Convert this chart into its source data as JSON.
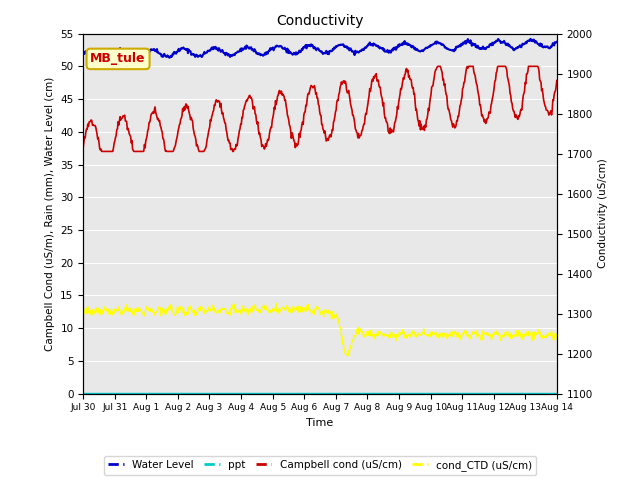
{
  "title": "Conductivity",
  "xlabel": "Time",
  "ylabel_left": "Campbell Cond (uS/m), Rain (mm), Water Level (cm)",
  "ylabel_right": "Conductivity (uS/cm)",
  "ylim_left": [
    0,
    55
  ],
  "ylim_right": [
    1100,
    2000
  ],
  "yticks_left": [
    0,
    5,
    10,
    15,
    20,
    25,
    30,
    35,
    40,
    45,
    50,
    55
  ],
  "yticks_right": [
    1100,
    1200,
    1300,
    1400,
    1500,
    1600,
    1700,
    1800,
    1900,
    2000
  ],
  "xtick_labels": [
    "Jul 30",
    "Jul 31",
    "Aug 1",
    "Aug 2",
    "Aug 3",
    "Aug 4",
    "Aug 5",
    "Aug 6",
    "Aug 7",
    "Aug 8",
    "Aug 9",
    "Aug 10",
    "Aug 11",
    "Aug 12",
    "Aug 13",
    "Aug 14"
  ],
  "annotation_text": "MB_tule",
  "annotation_color": "#ffffcc",
  "annotation_edge": "#ccaa00",
  "bg_color": "#e8e8e8",
  "line_colors": {
    "water_level": "#0000cc",
    "ppt": "#00cccc",
    "campbell": "#cc0000",
    "cond_ctd": "#ffff00"
  },
  "legend_labels": [
    "Water Level",
    "ppt",
    "Campbell cond (uS/cm)",
    "cond_CTD (uS/cm)"
  ]
}
